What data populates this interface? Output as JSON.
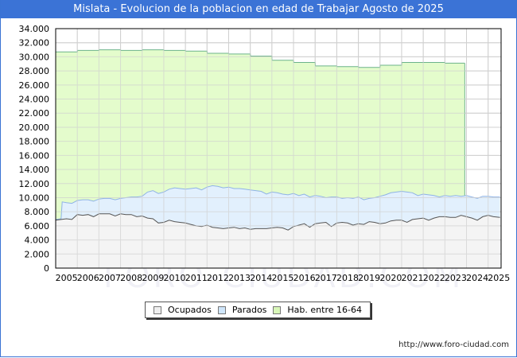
{
  "title": "Mislata - Evolucion de la poblacion en edad de Trabajar Agosto de 2025",
  "source_url": "http://www.foro-ciudad.com",
  "watermark": "FORO-CIUDAD.COM",
  "legend": [
    {
      "label": "Ocupados",
      "color": "#f2f2f2"
    },
    {
      "label": "Parados",
      "color": "#cfe6fb"
    },
    {
      "label": "Hab. entre 16-64",
      "color": "#d8f7b8"
    }
  ],
  "colors": {
    "title_bg": "#3b73d6",
    "hab_fill": "#e4fccc",
    "hab_line": "#6cb38a",
    "parados_fill": "#e2f0fd",
    "parados_line": "#8fb3e6",
    "ocupados_fill": "#f4f4f4",
    "ocupados_line": "#555555",
    "grid": "#d0d0d0"
  },
  "chart_data": {
    "type": "area",
    "title": "Mislata - Evolucion de la poblacion en edad de Trabajar Agosto de 2025",
    "xlabel": "",
    "ylabel": "",
    "ylim": [
      0,
      34000
    ],
    "xlim": [
      2005,
      2025.6
    ],
    "grid": true,
    "legend_position": "bottom",
    "y_ticks": [
      "0",
      "2.000",
      "4.000",
      "6.000",
      "8.000",
      "10.000",
      "12.000",
      "14.000",
      "16.000",
      "18.000",
      "20.000",
      "22.000",
      "24.000",
      "26.000",
      "28.000",
      "30.000",
      "32.000",
      "34.000"
    ],
    "x_ticks": [
      "2005",
      "2006",
      "2007",
      "2008",
      "2009",
      "2010",
      "2011",
      "2012",
      "2013",
      "2014",
      "2015",
      "2016",
      "2017",
      "2018",
      "2019",
      "2020",
      "2021",
      "2022",
      "2023",
      "2024",
      "2025"
    ],
    "series": [
      {
        "name": "Hab. entre 16-64",
        "x": [
          2005,
          2006,
          2006.01,
          2007,
          2007.01,
          2008,
          2008.01,
          2009,
          2009.01,
          2010,
          2010.01,
          2011,
          2011.01,
          2012,
          2012.01,
          2013,
          2013.01,
          2014,
          2014.01,
          2015,
          2015.01,
          2016,
          2016.01,
          2017,
          2017.01,
          2018,
          2018.01,
          2019,
          2019.01,
          2020,
          2020.01,
          2021,
          2021.01,
          2022,
          2022.01,
          2023,
          2023.01,
          2023.92
        ],
        "values": [
          30700,
          30700,
          30900,
          30900,
          31000,
          31000,
          30900,
          30900,
          31000,
          31000,
          30900,
          30900,
          30800,
          30800,
          30500,
          30500,
          30400,
          30400,
          30100,
          30100,
          29500,
          29500,
          29200,
          29200,
          28700,
          28700,
          28600,
          28600,
          28500,
          28500,
          28800,
          28800,
          29200,
          29200,
          29200,
          29200,
          29100,
          29100
        ]
      },
      {
        "name": "Parados",
        "x": [
          2005,
          2005.25,
          2005.3,
          2005.5,
          2005.75,
          2006,
          2006.25,
          2006.5,
          2006.75,
          2007,
          2007.25,
          2007.5,
          2007.75,
          2008,
          2008.25,
          2008.5,
          2008.75,
          2009,
          2009.25,
          2009.5,
          2009.75,
          2010,
          2010.25,
          2010.5,
          2010.75,
          2011,
          2011.25,
          2011.5,
          2011.75,
          2012,
          2012.25,
          2012.5,
          2012.75,
          2013,
          2013.25,
          2013.5,
          2013.75,
          2014,
          2014.25,
          2014.5,
          2014.75,
          2015,
          2015.25,
          2015.5,
          2015.75,
          2016,
          2016.25,
          2016.5,
          2016.75,
          2017,
          2017.25,
          2017.5,
          2017.75,
          2018,
          2018.25,
          2018.5,
          2018.75,
          2019,
          2019.25,
          2019.5,
          2019.75,
          2020,
          2020.25,
          2020.5,
          2020.75,
          2021,
          2021.25,
          2021.5,
          2021.75,
          2022,
          2022.25,
          2022.5,
          2022.75,
          2023,
          2023.25,
          2023.5,
          2023.75,
          2024,
          2024.25,
          2024.5,
          2024.75,
          2025,
          2025.25,
          2025.55
        ],
        "values": [
          6900,
          7000,
          9400,
          9300,
          9200,
          9600,
          9700,
          9700,
          9500,
          9800,
          9900,
          9900,
          9700,
          9900,
          10000,
          10100,
          10100,
          10200,
          10800,
          11000,
          10600,
          10800,
          11200,
          11400,
          11300,
          11200,
          11300,
          11400,
          11100,
          11500,
          11700,
          11600,
          11400,
          11500,
          11300,
          11300,
          11200,
          11100,
          11000,
          10900,
          10500,
          10800,
          10700,
          10500,
          10400,
          10600,
          10300,
          10500,
          10100,
          10300,
          10200,
          10000,
          10100,
          10100,
          9900,
          10000,
          9900,
          10100,
          9700,
          9900,
          10000,
          10200,
          10400,
          10700,
          10800,
          10900,
          10800,
          10700,
          10300,
          10500,
          10400,
          10300,
          10100,
          10300,
          10200,
          10300,
          10200,
          10300,
          10100,
          9900,
          10200,
          10200,
          10100,
          10100
        ]
      },
      {
        "name": "Ocupados",
        "x": [
          2005,
          2005.25,
          2005.5,
          2005.75,
          2006,
          2006.25,
          2006.5,
          2006.75,
          2007,
          2007.25,
          2007.5,
          2007.75,
          2008,
          2008.25,
          2008.5,
          2008.75,
          2009,
          2009.25,
          2009.5,
          2009.75,
          2010,
          2010.25,
          2010.5,
          2010.75,
          2011,
          2011.25,
          2011.5,
          2011.75,
          2012,
          2012.25,
          2012.5,
          2012.75,
          2013,
          2013.25,
          2013.5,
          2013.75,
          2014,
          2014.25,
          2014.5,
          2014.75,
          2015,
          2015.25,
          2015.5,
          2015.75,
          2016,
          2016.25,
          2016.5,
          2016.75,
          2017,
          2017.25,
          2017.5,
          2017.75,
          2018,
          2018.25,
          2018.5,
          2018.75,
          2019,
          2019.25,
          2019.5,
          2019.75,
          2020,
          2020.25,
          2020.5,
          2020.75,
          2021,
          2021.25,
          2021.5,
          2021.75,
          2022,
          2022.25,
          2022.5,
          2022.75,
          2023,
          2023.25,
          2023.5,
          2023.75,
          2024,
          2024.25,
          2024.5,
          2024.75,
          2025,
          2025.25,
          2025.55
        ],
        "values": [
          6800,
          6900,
          7000,
          6900,
          7600,
          7500,
          7600,
          7300,
          7700,
          7700,
          7700,
          7400,
          7700,
          7600,
          7600,
          7300,
          7400,
          7100,
          7000,
          6400,
          6500,
          6800,
          6600,
          6500,
          6400,
          6200,
          6000,
          5900,
          6100,
          5800,
          5700,
          5600,
          5700,
          5800,
          5600,
          5700,
          5500,
          5600,
          5600,
          5600,
          5700,
          5800,
          5700,
          5400,
          5900,
          6100,
          6300,
          5800,
          6300,
          6400,
          6500,
          5900,
          6400,
          6500,
          6400,
          6100,
          6300,
          6200,
          6600,
          6500,
          6300,
          6400,
          6700,
          6800,
          6800,
          6500,
          6900,
          7000,
          7100,
          6800,
          7100,
          7300,
          7300,
          7200,
          7200,
          7500,
          7300,
          7100,
          6800,
          7300,
          7500,
          7300,
          7200
        ]
      }
    ]
  }
}
